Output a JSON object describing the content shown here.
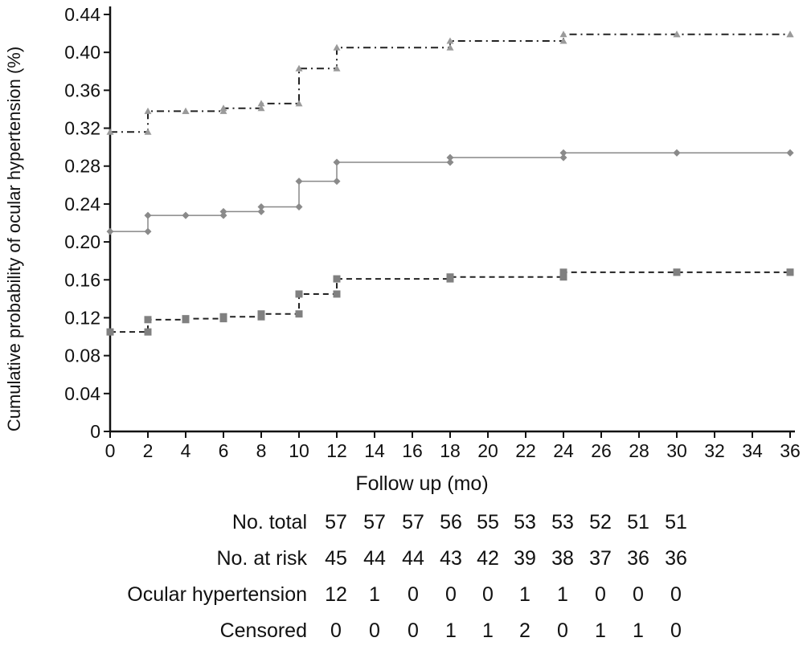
{
  "chart_data": {
    "type": "line",
    "step": true,
    "ylabel": "Cumulative probability of ocular hypertension (%)",
    "xlabel": "Follow up (mo)",
    "xlim": [
      0,
      36
    ],
    "ylim": [
      0,
      0.44
    ],
    "x_ticks": [
      0,
      2,
      4,
      6,
      8,
      10,
      12,
      14,
      16,
      18,
      20,
      22,
      24,
      26,
      28,
      30,
      32,
      34,
      36
    ],
    "y_ticks": [
      "0",
      "0.04",
      "0.08",
      "0.12",
      "0.16",
      "0.20",
      "0.24",
      "0.28",
      "0.32",
      "0.36",
      "0.40",
      "0.44"
    ],
    "grid": false,
    "series": [
      {
        "style": "dash-dot",
        "marker": "triangle",
        "color": "#9a9a9a",
        "points": [
          [
            0,
            0.316
          ],
          [
            2,
            0.338
          ],
          [
            4,
            0.338
          ],
          [
            6,
            0.341
          ],
          [
            8,
            0.346
          ],
          [
            10,
            0.383
          ],
          [
            12,
            0.405
          ],
          [
            18,
            0.412
          ],
          [
            24,
            0.419
          ],
          [
            30,
            0.419
          ],
          [
            36,
            0.419
          ]
        ]
      },
      {
        "style": "solid",
        "marker": "diamond",
        "color": "#8a8a8a",
        "points": [
          [
            0,
            0.211
          ],
          [
            2,
            0.228
          ],
          [
            4,
            0.228
          ],
          [
            6,
            0.232
          ],
          [
            8,
            0.237
          ],
          [
            10,
            0.264
          ],
          [
            12,
            0.284
          ],
          [
            18,
            0.289
          ],
          [
            24,
            0.294
          ],
          [
            30,
            0.294
          ],
          [
            36,
            0.294
          ]
        ]
      },
      {
        "style": "dashed",
        "marker": "square",
        "color": "#808080",
        "points": [
          [
            0,
            0.105
          ],
          [
            2,
            0.118
          ],
          [
            4,
            0.119
          ],
          [
            6,
            0.121
          ],
          [
            8,
            0.124
          ],
          [
            10,
            0.145
          ],
          [
            12,
            0.161
          ],
          [
            18,
            0.163
          ],
          [
            24,
            0.168
          ],
          [
            30,
            0.168
          ],
          [
            36,
            0.168
          ]
        ]
      }
    ],
    "risk_table": {
      "rows": [
        {
          "label": "No. total",
          "values": [
            "57",
            "57",
            "57",
            "56",
            "55",
            "53",
            "53",
            "52",
            "51",
            "51"
          ]
        },
        {
          "label": "No. at risk",
          "values": [
            "45",
            "44",
            "44",
            "43",
            "42",
            "39",
            "38",
            "37",
            "36",
            "36"
          ]
        },
        {
          "label": "Ocular hypertension",
          "values": [
            "12",
            "1",
            "0",
            "0",
            "0",
            "1",
            "1",
            "0",
            "0",
            "0"
          ]
        },
        {
          "label": "Censored",
          "values": [
            "0",
            "0",
            "0",
            "1",
            "1",
            "2",
            "0",
            "1",
            "1",
            "0"
          ]
        }
      ]
    }
  }
}
